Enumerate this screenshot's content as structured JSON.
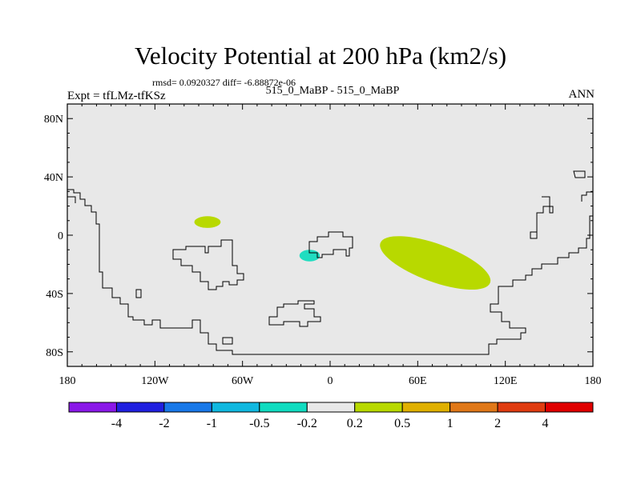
{
  "title": "Velocity Potential at 200 hPa (km2/s)",
  "stats_text": "rmsd= 0.0920327 diff= -6.88872e-06",
  "left_label": "Expt = tfLMz-tfKSz",
  "center_label": "515_0_MaBP - 515_0_MaBP",
  "right_label": "ANN",
  "map": {
    "lon_range": [
      -180,
      180
    ],
    "lat_range": [
      -90,
      90
    ],
    "background_color": "#e8e8e8",
    "lat_ticks": [
      {
        "value": 80,
        "label": "80N"
      },
      {
        "value": 40,
        "label": "40N"
      },
      {
        "value": 0,
        "label": "0"
      },
      {
        "value": -40,
        "label": "40S"
      },
      {
        "value": -80,
        "label": "80S"
      }
    ],
    "lon_ticks": [
      {
        "value": -180,
        "label": "180"
      },
      {
        "value": -120,
        "label": "120W"
      },
      {
        "value": -60,
        "label": "60W"
      },
      {
        "value": 0,
        "label": "0"
      },
      {
        "value": 60,
        "label": "60E"
      },
      {
        "value": 120,
        "label": "120E"
      },
      {
        "value": 180,
        "label": "180"
      }
    ]
  },
  "anomalies": [
    {
      "name": "anomaly-south-america-north",
      "range": "0.2 to 0.5",
      "color": "#b8d900",
      "lon_center": -84,
      "lat_center": 9,
      "lon_radius": 9,
      "lat_radius": 4
    },
    {
      "name": "anomaly-west-africa",
      "range": "-0.5 to -0.2",
      "color": "#20ddc0",
      "lon_center": -14,
      "lat_center": -14,
      "lon_radius": 7,
      "lat_radius": 4
    },
    {
      "name": "anomaly-indian-ocean",
      "range": "0.2 to 0.5",
      "color": "#b8d900",
      "lon_center": 72,
      "lat_center": -19,
      "lon_radius": 40,
      "lat_radius": 13
    }
  ],
  "colorbar": {
    "colors": [
      "#8a18e8",
      "#2020e0",
      "#1878e8",
      "#10b8e0",
      "#10dcc0",
      "#e8e8e8",
      "#b8d900",
      "#e0b000",
      "#e07818",
      "#e03c10",
      "#e00000"
    ],
    "labels": [
      "-4",
      "-2",
      "-1",
      "-0.5",
      "-0.2",
      "0.2",
      "0.5",
      "1",
      "2",
      "4"
    ]
  }
}
